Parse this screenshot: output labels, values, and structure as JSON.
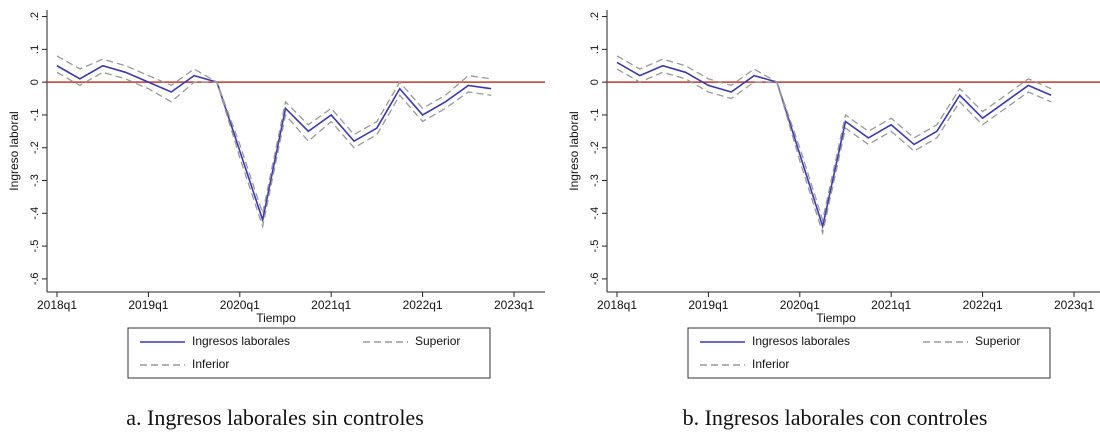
{
  "chart_data": [
    {
      "type": "line",
      "caption": "a. Ingresos laborales sin controles",
      "xlabel": "Tiempo",
      "ylabel": "Ingreso laboral",
      "categories": [
        "2018q1",
        null,
        null,
        null,
        "2019q1",
        null,
        null,
        null,
        "2020q1",
        null,
        null,
        null,
        "2021q1",
        null,
        null,
        null,
        "2022q1",
        null,
        null,
        null,
        "2023q1"
      ],
      "series": [
        {
          "name": "Ingresos laborales",
          "color": "#3a3ab0",
          "dash": false,
          "values": [
            0.05,
            0.01,
            0.05,
            0.03,
            0.0,
            -0.03,
            0.02,
            0.0,
            -0.21,
            -0.42,
            -0.08,
            -0.15,
            -0.1,
            -0.18,
            -0.14,
            -0.02,
            -0.1,
            -0.06,
            -0.01,
            -0.02,
            null
          ]
        },
        {
          "name": "Superior",
          "color": "#999999",
          "dash": true,
          "values": [
            0.08,
            0.04,
            0.07,
            0.05,
            0.02,
            -0.01,
            0.04,
            0.0,
            -0.19,
            -0.4,
            -0.06,
            -0.13,
            -0.08,
            -0.16,
            -0.12,
            0.0,
            -0.08,
            -0.04,
            0.02,
            0.01,
            null
          ]
        },
        {
          "name": "Inferior",
          "color": "#999999",
          "dash": true,
          "values": [
            0.03,
            -0.01,
            0.03,
            0.01,
            -0.02,
            -0.06,
            0.0,
            0.0,
            -0.23,
            -0.44,
            -0.1,
            -0.18,
            -0.12,
            -0.2,
            -0.16,
            -0.04,
            -0.12,
            -0.08,
            -0.03,
            -0.04,
            null
          ]
        }
      ],
      "hline": {
        "value": 0,
        "color": "#c0392b"
      },
      "ylim": [
        -0.64,
        0.22
      ],
      "yticks": [
        {
          "value": 0.2,
          "label": ".2"
        },
        {
          "value": 0.1,
          "label": ".1"
        },
        0,
        {
          "value": -0.1,
          "label": "-.1"
        },
        {
          "value": -0.2,
          "label": "-.2"
        },
        {
          "value": -0.3,
          "label": "-.3"
        },
        {
          "value": -0.4,
          "label": "-.4"
        },
        {
          "value": -0.5,
          "label": "-.5"
        },
        {
          "value": -0.6,
          "label": "-.6"
        }
      ]
    },
    {
      "type": "line",
      "caption": "b. Ingresos laborales con controles",
      "xlabel": "Tiempo",
      "ylabel": "Ingreso laboral",
      "categories": [
        "2018q1",
        null,
        null,
        null,
        "2019q1",
        null,
        null,
        null,
        "2020q1",
        null,
        null,
        null,
        "2021q1",
        null,
        null,
        null,
        "2022q1",
        null,
        null,
        null,
        "2023q1"
      ],
      "series": [
        {
          "name": "Ingresos laborales",
          "color": "#3a3ab0",
          "dash": false,
          "values": [
            0.06,
            0.02,
            0.05,
            0.03,
            -0.01,
            -0.03,
            0.02,
            0.0,
            -0.22,
            -0.44,
            -0.12,
            -0.17,
            -0.13,
            -0.19,
            -0.15,
            -0.04,
            -0.11,
            -0.06,
            -0.01,
            -0.04,
            null
          ]
        },
        {
          "name": "Superior",
          "color": "#999999",
          "dash": true,
          "values": [
            0.08,
            0.04,
            0.07,
            0.05,
            0.01,
            -0.01,
            0.04,
            0.0,
            -0.2,
            -0.42,
            -0.1,
            -0.15,
            -0.11,
            -0.17,
            -0.13,
            -0.02,
            -0.09,
            -0.04,
            0.01,
            -0.02,
            null
          ]
        },
        {
          "name": "Inferior",
          "color": "#999999",
          "dash": true,
          "values": [
            0.04,
            0.0,
            0.03,
            0.01,
            -0.03,
            -0.05,
            0.0,
            0.0,
            -0.24,
            -0.46,
            -0.14,
            -0.19,
            -0.15,
            -0.21,
            -0.17,
            -0.06,
            -0.13,
            -0.08,
            -0.03,
            -0.06,
            null
          ]
        }
      ],
      "hline": {
        "value": 0,
        "color": "#c0392b"
      },
      "ylim": [
        -0.64,
        0.22
      ],
      "yticks": [
        {
          "value": 0.2,
          "label": ".2"
        },
        {
          "value": 0.1,
          "label": ".1"
        },
        0,
        {
          "value": -0.1,
          "label": "-.1"
        },
        {
          "value": -0.2,
          "label": "-.2"
        },
        {
          "value": -0.3,
          "label": "-.3"
        },
        {
          "value": -0.4,
          "label": "-.4"
        },
        {
          "value": -0.5,
          "label": "-.5"
        },
        {
          "value": -0.6,
          "label": "-.6"
        }
      ]
    }
  ]
}
